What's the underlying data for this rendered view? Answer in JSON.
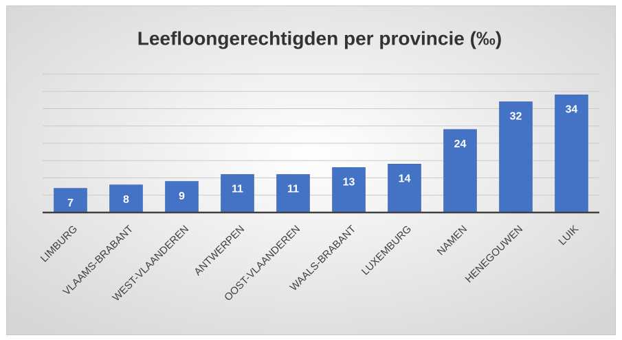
{
  "chart_data": {
    "type": "bar",
    "title": "Leefloongerechtigden per provincie (‰)",
    "categories": [
      "LIMBURG",
      "VLAAMS-BRABANT",
      "WEST-VLAANDEREN",
      "ANTWERPEN",
      "OOST-VLAANDEREN",
      "WAALS-BRABANT",
      "LUXEMBURG",
      "NAMEN",
      "HENEGOUWEN",
      "LUIK"
    ],
    "values": [
      7,
      8,
      9,
      11,
      11,
      13,
      14,
      24,
      32,
      34
    ],
    "color": "#4472c4",
    "ylim": [
      0,
      40
    ],
    "yticks": [
      0,
      5,
      10,
      15,
      20,
      25,
      30,
      35,
      40
    ],
    "grid": true
  }
}
